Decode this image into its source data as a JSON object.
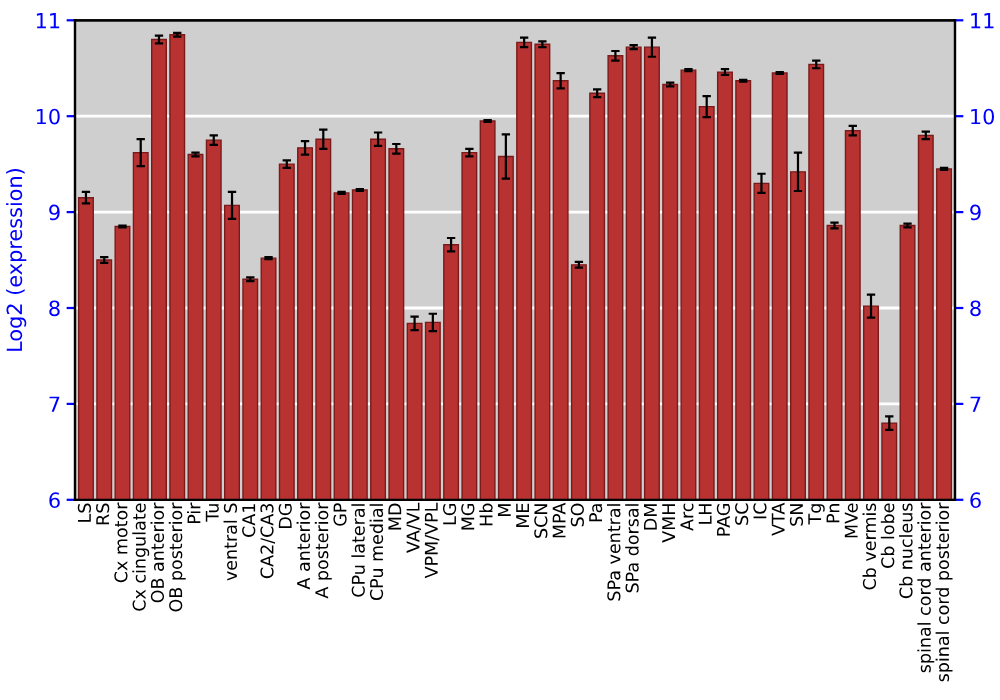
{
  "chart_data": {
    "type": "bar",
    "ylabel": "Log2 (expression)",
    "categories": [
      "LS",
      "RS",
      "Cx motor",
      "Cx cingulate",
      "OB anterior",
      "OB posterior",
      "Pir",
      "Tu",
      "ventral S",
      "CA1",
      "CA2/CA3",
      "DG",
      "A anterior",
      "A posterior",
      "GP",
      "CPu lateral",
      "CPu medial",
      "MD",
      "VA/VL",
      "VPM/VPL",
      "LG",
      "MG",
      "Hb",
      "M",
      "ME",
      "SCN",
      "MPA",
      "SO",
      "Pa",
      "SPa ventral",
      "SPa dorsal",
      "DM",
      "VMH",
      "Arc",
      "LH",
      "PAG",
      "SC",
      "IC",
      "VTA",
      "SN",
      "Tg",
      "Pn",
      "MVe",
      "Cb vermis",
      "Cb lobe",
      "Cb nucleus",
      "spinal cord anterior",
      "spinal cord posterior"
    ],
    "values": [
      9.15,
      8.5,
      8.85,
      9.62,
      10.8,
      10.85,
      9.6,
      9.75,
      9.07,
      8.3,
      8.52,
      9.5,
      9.67,
      9.76,
      9.2,
      9.23,
      9.76,
      9.66,
      7.84,
      7.85,
      8.66,
      9.62,
      9.95,
      9.58,
      10.77,
      10.75,
      10.37,
      8.45,
      10.24,
      10.63,
      10.72,
      10.72,
      10.33,
      10.48,
      10.1,
      10.46,
      10.37,
      9.3,
      10.45,
      9.42,
      10.54,
      8.86,
      9.85,
      8.02,
      6.8,
      8.86,
      9.8,
      9.45
    ],
    "errors": [
      0.06,
      0.03,
      0.01,
      0.14,
      0.04,
      0.02,
      0.02,
      0.05,
      0.14,
      0.02,
      0.01,
      0.04,
      0.07,
      0.1,
      0.01,
      0.01,
      0.07,
      0.05,
      0.07,
      0.09,
      0.07,
      0.04,
      0.01,
      0.23,
      0.05,
      0.03,
      0.08,
      0.03,
      0.04,
      0.05,
      0.02,
      0.1,
      0.02,
      0.01,
      0.11,
      0.03,
      0.01,
      0.1,
      0.01,
      0.2,
      0.04,
      0.03,
      0.05,
      0.12,
      0.07,
      0.02,
      0.04,
      0.01
    ],
    "color": "#b83232",
    "ylim": [
      6,
      11
    ],
    "yticks": [
      6,
      7,
      8,
      9,
      10,
      11
    ],
    "y2lim": [
      6,
      11
    ],
    "y2ticks": [
      6,
      7,
      8,
      9,
      10,
      11
    ],
    "grid": "y"
  }
}
